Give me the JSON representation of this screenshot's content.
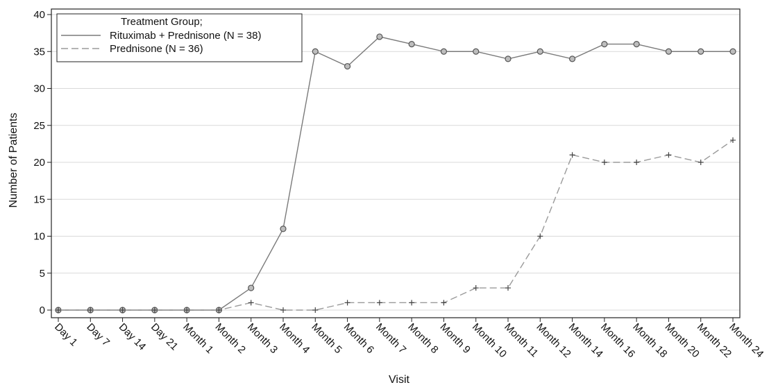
{
  "chart_data": {
    "type": "line",
    "title": "",
    "xlabel": "Visit",
    "ylabel": "Number of Patients",
    "ylim": [
      0,
      40
    ],
    "yticks": [
      0,
      5,
      10,
      15,
      20,
      25,
      30,
      35,
      40
    ],
    "grid": true,
    "legend_position": "top-left",
    "legend_title": "Treatment Group;",
    "categories": [
      "Day 1",
      "Day 7",
      "Day 14",
      "Day 21",
      "Month 1",
      "Month 2",
      "Month 3",
      "Month 4",
      "Month 5",
      "Month 6",
      "Month 7",
      "Month 8",
      "Month 9",
      "Month 10",
      "Month 11",
      "Month 12",
      "Month 14",
      "Month 16",
      "Month 18",
      "Month 20",
      "Month 22",
      "Month 24"
    ],
    "series": [
      {
        "name": "Rituximab + Prednisone (N = 38)",
        "style": "solid",
        "marker": "circle",
        "color": "#7a7a7a",
        "values": [
          0,
          0,
          0,
          0,
          0,
          0,
          3,
          11,
          35,
          33,
          37,
          36,
          35,
          35,
          34,
          35,
          34,
          36,
          36,
          35,
          35,
          35
        ]
      },
      {
        "name": "Prednisone (N = 36)",
        "style": "dashed",
        "marker": "plus",
        "color": "#9a9a9a",
        "values": [
          0,
          0,
          0,
          0,
          0,
          0,
          1,
          0,
          0,
          1,
          1,
          1,
          1,
          3,
          3,
          10,
          21,
          20,
          20,
          21,
          20,
          23
        ]
      }
    ]
  }
}
